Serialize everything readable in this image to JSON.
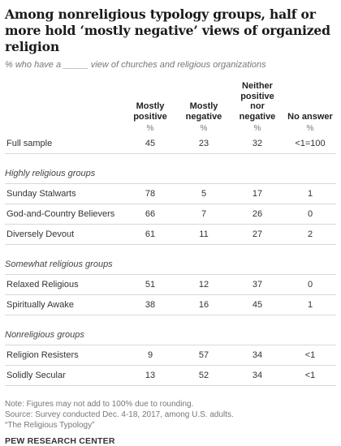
{
  "title": "Among nonreligious typology groups, half or more hold ‘mostly negative’ views of organized religion",
  "subtitle": "% who have a _____ view of churches and religious organizations",
  "chart_data": {
    "type": "table",
    "columns": [
      "Mostly positive",
      "Mostly negative",
      "Neither positive nor negative",
      "No answer"
    ],
    "unit_label": "%",
    "full_sample": {
      "label": "Full sample",
      "values": [
        "45",
        "23",
        "32",
        "<1=100"
      ]
    },
    "groups": [
      {
        "name": "Highly religious groups",
        "rows": [
          {
            "label": "Sunday Stalwarts",
            "values": [
              "78",
              "5",
              "17",
              "1"
            ]
          },
          {
            "label": "God-and-Country Believers",
            "values": [
              "66",
              "7",
              "26",
              "0"
            ]
          },
          {
            "label": "Diversely Devout",
            "values": [
              "61",
              "11",
              "27",
              "2"
            ]
          }
        ]
      },
      {
        "name": "Somewhat religious groups",
        "rows": [
          {
            "label": "Relaxed Religious",
            "values": [
              "51",
              "12",
              "37",
              "0"
            ]
          },
          {
            "label": "Spiritually Awake",
            "values": [
              "38",
              "16",
              "45",
              "1"
            ]
          }
        ]
      },
      {
        "name": "Nonreligious groups",
        "rows": [
          {
            "label": "Religion Resisters",
            "values": [
              "9",
              "57",
              "34",
              "<1"
            ]
          },
          {
            "label": "Solidly Secular",
            "values": [
              "13",
              "52",
              "34",
              "<1"
            ]
          }
        ]
      }
    ]
  },
  "notes": [
    "Note: Figures may not add to 100% due to rounding.",
    "Source: Survey conducted Dec. 4-18, 2017, among U.S. adults.",
    "“The Religious Typology”"
  ],
  "brand": "PEW RESEARCH CENTER"
}
